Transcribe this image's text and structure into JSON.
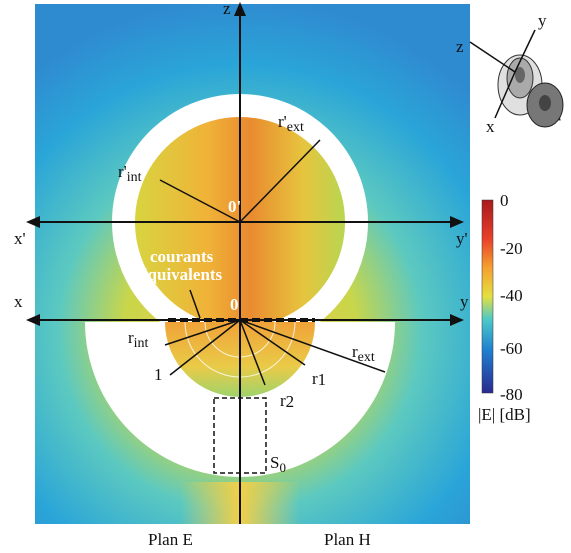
{
  "axes": {
    "z": "z",
    "x_prime": "x'",
    "y_prime": "y'",
    "x": "x",
    "y": "y",
    "origin_prime": "0'",
    "origin": "0"
  },
  "radii": {
    "r_ext_prime": {
      "base": "r'",
      "sub": "ext"
    },
    "r_int_prime": {
      "base": "r'",
      "sub": "int"
    },
    "r_int": {
      "base": "r",
      "sub": "int"
    },
    "r_ext": {
      "base": "r",
      "sub": "ext"
    },
    "r1": {
      "base": "r",
      "sub": "1"
    },
    "r2": {
      "base": "r",
      "sub": "2"
    },
    "one": "1"
  },
  "annotation": {
    "line1": "courants",
    "line2": "équivalents"
  },
  "surface": {
    "base": "S",
    "sub": "0"
  },
  "colorbar": {
    "ticks": [
      "0",
      "-20",
      "-40",
      "-60",
      "-80"
    ],
    "unit": "|E| [dB]"
  },
  "captions": {
    "left": "Plan E",
    "right": "Plan H"
  },
  "inset": {
    "z": "z",
    "y": "y",
    "x": "x"
  }
}
